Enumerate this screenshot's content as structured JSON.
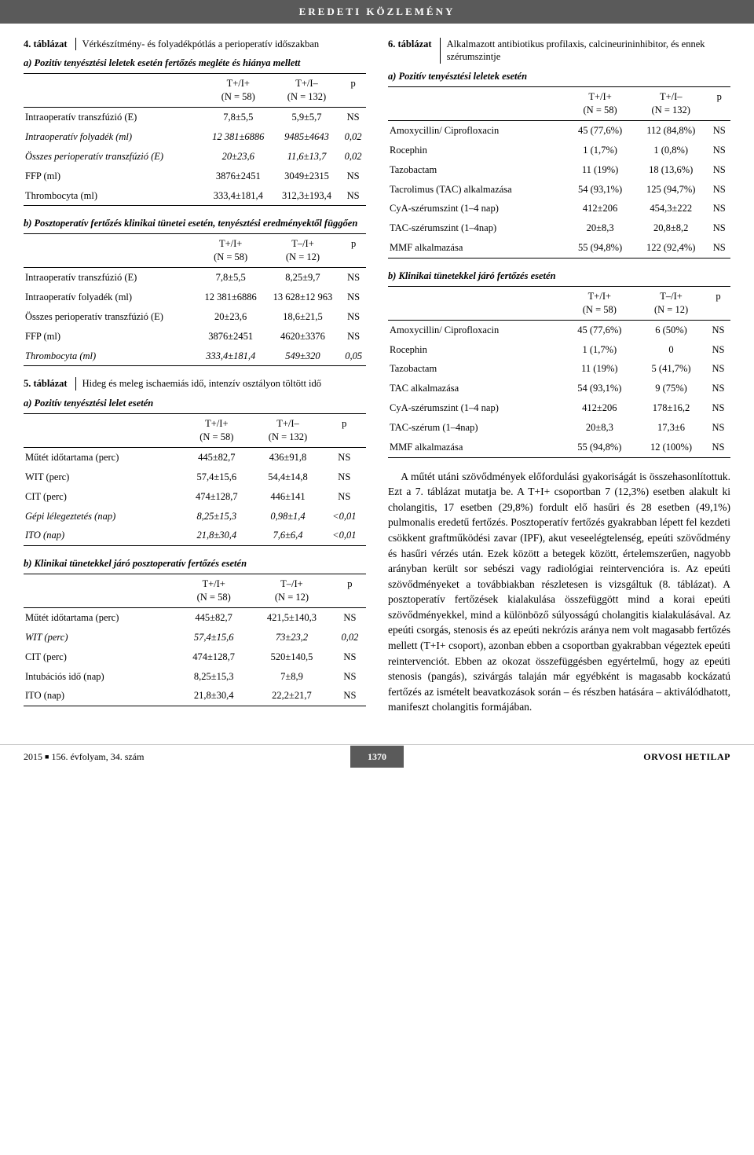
{
  "header": "EREDETI KÖZLEMÉNY",
  "t4": {
    "label": "4. táblázat",
    "caption": "Vérkészítmény- és folyadékpótlás a perioperatív időszakban",
    "a_cap": "a) Pozitív tenyésztési leletek esetén fertőzés megléte és hiánya mellett",
    "a_h1": "T+/I+",
    "a_h1b": "(N = 58)",
    "a_h2": "T+/I–",
    "a_h2b": "(N = 132)",
    "a_h3": "p",
    "a_r1c0": "Intraoperatív transzfúzió (E)",
    "a_r1c1": "7,8±5,5",
    "a_r1c2": "5,9±5,7",
    "a_r1c3": "NS",
    "a_r2c0": "Intraoperatív folyadék (ml)",
    "a_r2c1": "12 381±6886",
    "a_r2c2": "9485±4643",
    "a_r2c3": "0,02",
    "a_r3c0": "Összes perioperatív transzfúzió (E)",
    "a_r3c1": "20±23,6",
    "a_r3c2": "11,6±13,7",
    "a_r3c3": "0,02",
    "a_r4c0": "FFP (ml)",
    "a_r4c1": "3876±2451",
    "a_r4c2": "3049±2315",
    "a_r4c3": "NS",
    "a_r5c0": "Thrombocyta (ml)",
    "a_r5c1": "333,4±181,4",
    "a_r5c2": "312,3±193,4",
    "a_r5c3": "NS",
    "b_cap": "b) Posztoperatív fertőzés klinikai tünetei esetén, tenyésztési eredményektől függően",
    "b_h1": "T+/I+",
    "b_h1b": "(N = 58)",
    "b_h2": "T–/I+",
    "b_h2b": "(N = 12)",
    "b_h3": "p",
    "b_r1c0": "Intraoperatív transzfúzió (E)",
    "b_r1c1": "7,8±5,5",
    "b_r1c2": "8,25±9,7",
    "b_r1c3": "NS",
    "b_r2c0": "Intraoperatív folyadék (ml)",
    "b_r2c1": "12 381±6886",
    "b_r2c2": "13 628±12 963",
    "b_r2c3": "NS",
    "b_r3c0": "Összes perioperatív transzfúzió (E)",
    "b_r3c1": "20±23,6",
    "b_r3c2": "18,6±21,5",
    "b_r3c3": "NS",
    "b_r4c0": "FFP (ml)",
    "b_r4c1": "3876±2451",
    "b_r4c2": "4620±3376",
    "b_r4c3": "NS",
    "b_r5c0": "Thrombocyta (ml)",
    "b_r5c1": "333,4±181,4",
    "b_r5c2": "549±320",
    "b_r5c3": "0,05"
  },
  "t5": {
    "label": "5. táblázat",
    "caption": "Hideg és meleg ischaemiás idő, intenzív osztályon töltött idő",
    "a_cap": "a) Pozitív tenyésztési lelet esetén",
    "a_h1": "T+/I+",
    "a_h1b": "(N = 58)",
    "a_h2": "T+/I–",
    "a_h2b": "(N = 132)",
    "a_h3": "p",
    "a_r1c0": "Műtét időtartama (perc)",
    "a_r1c1": "445±82,7",
    "a_r1c2": "436±91,8",
    "a_r1c3": "NS",
    "a_r2c0": "WIT (perc)",
    "a_r2c1": "57,4±15,6",
    "a_r2c2": "54,4±14,8",
    "a_r2c3": "NS",
    "a_r3c0": "CIT (perc)",
    "a_r3c1": "474±128,7",
    "a_r3c2": "446±141",
    "a_r3c3": "NS",
    "a_r4c0": "Gépi lélegeztetés (nap)",
    "a_r4c1": "8,25±15,3",
    "a_r4c2": "0,98±1,4",
    "a_r4c3": "<0,01",
    "a_r5c0": "ITO (nap)",
    "a_r5c1": "21,8±30,4",
    "a_r5c2": "7,6±6,4",
    "a_r5c3": "<0,01",
    "b_cap": "b) Klinikai tünetekkel járó posztoperatív fertőzés esetén",
    "b_h1": "T+/I+",
    "b_h1b": "(N = 58)",
    "b_h2": "T–/I+",
    "b_h2b": "(N = 12)",
    "b_h3": "p",
    "b_r1c0": "Műtét időtartama (perc)",
    "b_r1c1": "445±82,7",
    "b_r1c2": "421,5±140,3",
    "b_r1c3": "NS",
    "b_r2c0": "WIT (perc)",
    "b_r2c1": "57,4±15,6",
    "b_r2c2": "73±23,2",
    "b_r2c3": "0,02",
    "b_r3c0": "CIT (perc)",
    "b_r3c1": "474±128,7",
    "b_r3c2": "520±140,5",
    "b_r3c3": "NS",
    "b_r4c0": "Intubációs idő (nap)",
    "b_r4c1": "8,25±15,3",
    "b_r4c2": "7±8,9",
    "b_r4c3": "NS",
    "b_r5c0": "ITO (nap)",
    "b_r5c1": "21,8±30,4",
    "b_r5c2": "22,2±21,7",
    "b_r5c3": "NS"
  },
  "t6": {
    "label": "6. táblázat",
    "caption": "Alkalmazott antibiotikus profilaxis, calcineurininhibitor, és ennek szérumszintje",
    "a_cap": "a) Pozitív tenyésztési leletek esetén",
    "a_h1": "T+/I+",
    "a_h1b": "(N = 58)",
    "a_h2": "T+/I–",
    "a_h2b": "(N = 132)",
    "a_h3": "p",
    "a_r1c0": "Amoxycillin/ Ciprofloxacin",
    "a_r1c1": "45 (77,6%)",
    "a_r1c2": "112 (84,8%)",
    "a_r1c3": "NS",
    "a_r2c0": "Rocephin",
    "a_r2c1": "1 (1,7%)",
    "a_r2c2": "1 (0,8%)",
    "a_r2c3": "NS",
    "a_r3c0": "Tazobactam",
    "a_r3c1": "11 (19%)",
    "a_r3c2": "18 (13,6%)",
    "a_r3c3": "NS",
    "a_r4c0": "Tacrolimus (TAC) alkalmazása",
    "a_r4c1": "54 (93,1%)",
    "a_r4c2": "125 (94,7%)",
    "a_r4c3": "NS",
    "a_r5c0": "CyA-szérumszint (1–4 nap)",
    "a_r5c1": "412±206",
    "a_r5c2": "454,3±222",
    "a_r5c3": "NS",
    "a_r6c0": "TAC-szérumszint (1–4nap)",
    "a_r6c1": "20±8,3",
    "a_r6c2": "20,8±8,2",
    "a_r6c3": "NS",
    "a_r7c0": "MMF alkalmazása",
    "a_r7c1": "55 (94,8%)",
    "a_r7c2": "122 (92,4%)",
    "a_r7c3": "NS",
    "b_cap": "b) Klinikai tünetekkel járó fertőzés esetén",
    "b_h1": "T+/I+",
    "b_h1b": "(N = 58)",
    "b_h2": "T–/I+",
    "b_h2b": "(N = 12)",
    "b_h3": "p",
    "b_r1c0": "Amoxycillin/ Ciprofloxacin",
    "b_r1c1": "45 (77,6%)",
    "b_r1c2": "6 (50%)",
    "b_r1c3": "NS",
    "b_r2c0": "Rocephin",
    "b_r2c1": "1 (1,7%)",
    "b_r2c2": "0",
    "b_r2c3": "NS",
    "b_r3c0": "Tazobactam",
    "b_r3c1": "11 (19%)",
    "b_r3c2": "5 (41,7%)",
    "b_r3c3": "NS",
    "b_r4c0": "TAC alkalmazása",
    "b_r4c1": "54 (93,1%)",
    "b_r4c2": "9 (75%)",
    "b_r4c3": "NS",
    "b_r5c0": "CyA-szérumszint (1–4 nap)",
    "b_r5c1": "412±206",
    "b_r5c2": "178±16,2",
    "b_r5c3": "NS",
    "b_r6c0": "TAC-szérum (1–4nap)",
    "b_r6c1": "20±8,3",
    "b_r6c2": "17,3±6",
    "b_r6c3": "NS",
    "b_r7c0": "MMF alkalmazása",
    "b_r7c1": "55 (94,8%)",
    "b_r7c2": "12 (100%)",
    "b_r7c3": "NS"
  },
  "para": "A műtét utáni szövődmények előfordulási gyakoriságát is összehasonlítottuk. Ezt a 7. táblázat mutatja be. A T+I+ csoportban 7 (12,3%) esetben alakult ki cholangitis, 17 esetben (29,8%) fordult elő hasűri és 28 esetben (49,1%) pulmonalis eredetű fertőzés. Posztoperatív fertőzés gyakrabban lépett fel kezdeti csökkent graftműködési zavar (IPF), akut veseelégtelenség, epeúti szövődmény és hasűri vérzés után. Ezek között a betegek között, értelemszerűen, nagyobb arányban került sor sebészi vagy radiológiai reintervencióra is. Az epeúti szövődményeket a továbbiakban részletesen is vizsgáltuk (8. táblázat). A posztoperatív fertőzések kialakulása összefüggött mind a korai epeúti szövődményekkel, mind a különböző súlyosságú cholangitis kialakulásával. Az epeúti csorgás, stenosis és az epeúti nekrózis aránya nem volt magasabb fertőzés mellett (T+I+ csoport), azonban ebben a csoportban gyakrabban végeztek epeúti reintervenciót. Ebben az okozat összefüggésben egyértelmű, hogy az epeúti stenosis (pangás), szivárgás talaján már egyébként is magasabb kockázatú fertőzés az ismételt beavatkozások során – és részben hatására – aktiválódhatott, manifeszt cholangitis formájában.",
  "footer": {
    "left_a": "2015",
    "left_b": "156. évfolyam, 34. szám",
    "page": "1370",
    "right": "ORVOSI HETILAP"
  }
}
